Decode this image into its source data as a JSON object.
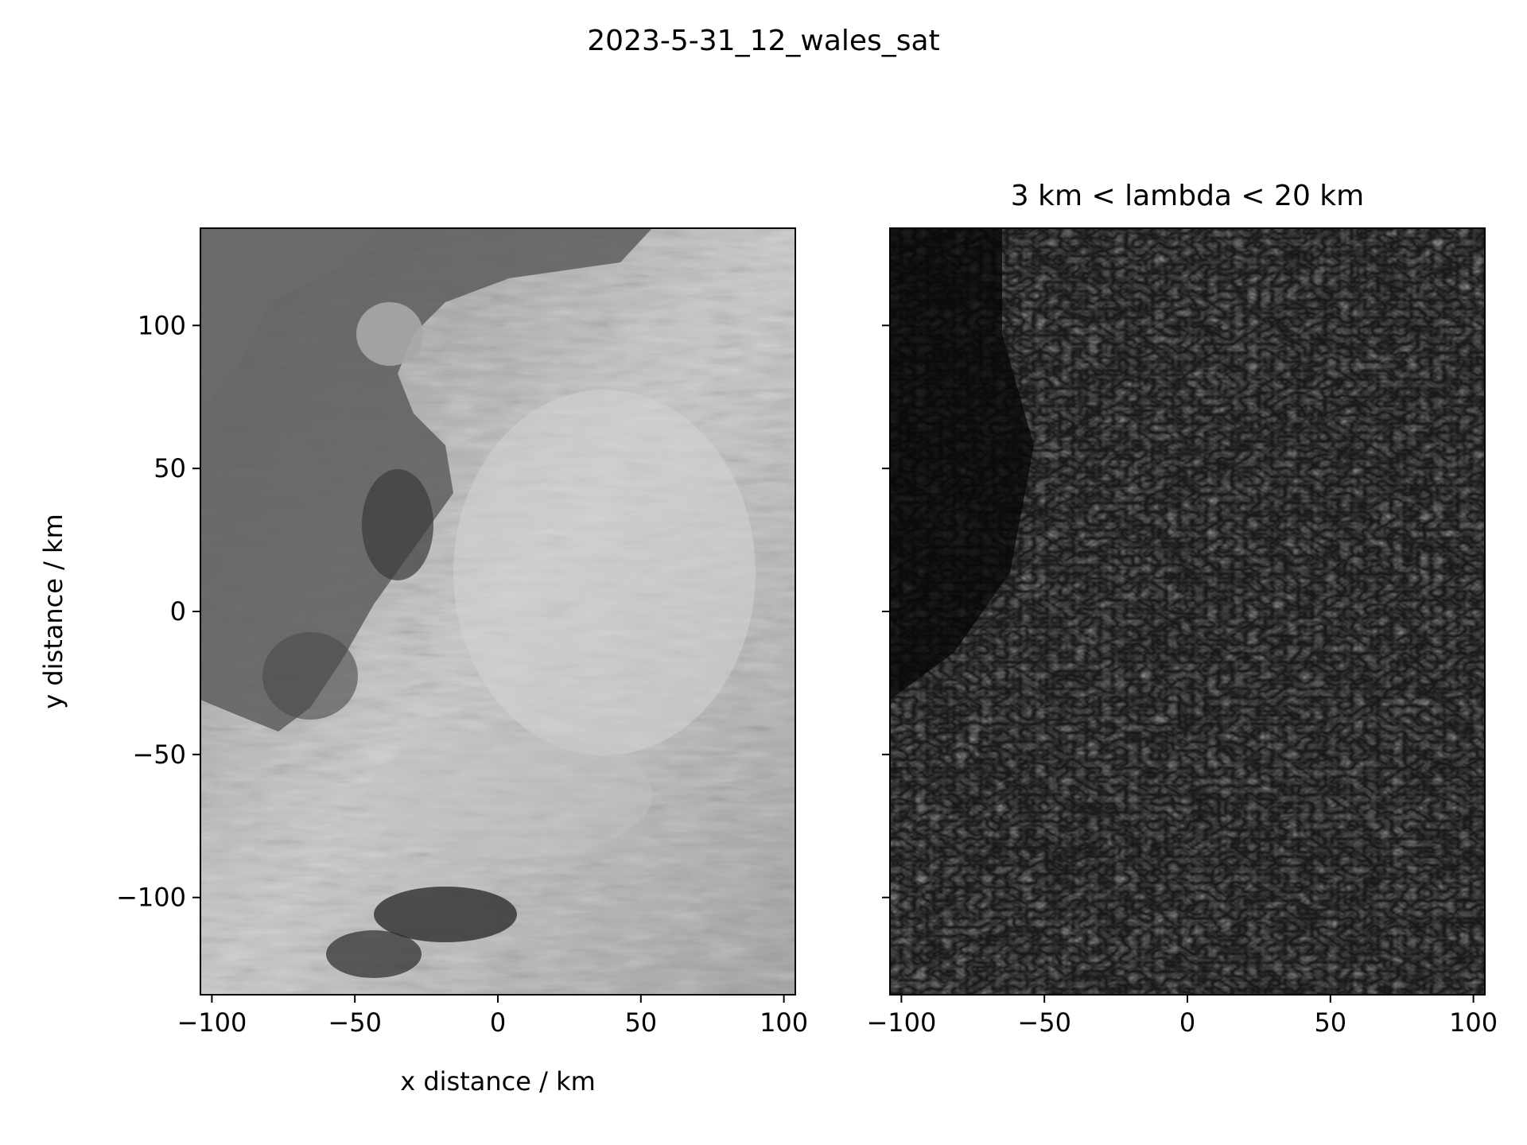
{
  "figure": {
    "suptitle": "2023-5-31_12_wales_sat"
  },
  "chart_data": [
    {
      "type": "heatmap",
      "title": "",
      "xlabel": "x distance / km",
      "ylabel": "y distance / km",
      "xlim": [
        -104,
        104
      ],
      "ylim": [
        -134,
        134
      ],
      "xticks": [
        -100,
        -50,
        0,
        50,
        100
      ],
      "xtick_labels": [
        "−100",
        "−50",
        "0",
        "50",
        "100"
      ],
      "yticks": [
        100,
        50,
        0,
        -50,
        -100
      ],
      "ytick_labels": [
        "100",
        "50",
        "0",
        "−50",
        "−100"
      ],
      "colormap": "gray",
      "content": "grayscale satellite image with bright cloud field over land and darker sea to the west"
    },
    {
      "type": "heatmap",
      "title": "3 km < lambda < 20 km",
      "xlabel": "",
      "ylabel": "",
      "xlim": [
        -104,
        104
      ],
      "ylim": [
        -134,
        134
      ],
      "xticks": [
        -100,
        -50,
        0,
        50,
        100
      ],
      "xtick_labels": [
        "−100",
        "−50",
        "0",
        "50",
        "100"
      ],
      "yticks": [
        100,
        50,
        0,
        -50,
        -100
      ],
      "ytick_labels": [],
      "colormap": "gray",
      "content": "band-pass filtered field showing small-scale wave structures"
    }
  ]
}
